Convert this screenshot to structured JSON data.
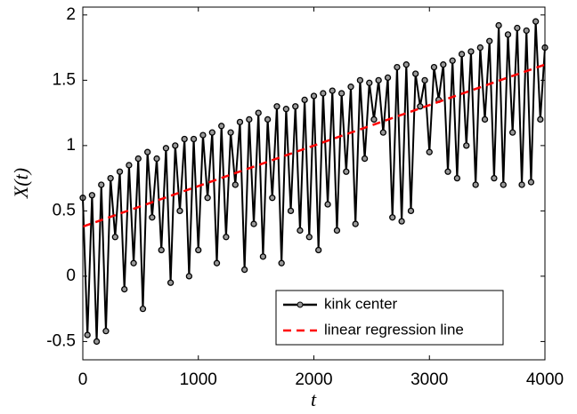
{
  "chart_data": {
    "type": "line",
    "x_label": "t",
    "y_label": "X(t)",
    "xlim": [
      0,
      4000
    ],
    "xticks": [
      0,
      1000,
      2000,
      3000,
      4000
    ],
    "ylim": [
      -0.64,
      2.06
    ],
    "yticks": [
      -0.5,
      0,
      0.5,
      1,
      1.5,
      2
    ],
    "grid": false,
    "legend": "lower right",
    "series": [
      {
        "name": "kink center",
        "color": "#000000",
        "dash": "solid",
        "marker": "circle",
        "x": [
          0,
          40,
          80,
          120,
          160,
          200,
          240,
          280,
          320,
          360,
          400,
          440,
          480,
          520,
          560,
          600,
          640,
          680,
          720,
          760,
          800,
          840,
          880,
          920,
          960,
          1000,
          1040,
          1080,
          1120,
          1160,
          1200,
          1240,
          1280,
          1320,
          1360,
          1400,
          1440,
          1480,
          1520,
          1560,
          1600,
          1640,
          1680,
          1720,
          1760,
          1800,
          1840,
          1880,
          1920,
          1960,
          2000,
          2040,
          2080,
          2120,
          2160,
          2200,
          2240,
          2280,
          2320,
          2360,
          2400,
          2440,
          2480,
          2520,
          2560,
          2600,
          2640,
          2680,
          2720,
          2760,
          2800,
          2840,
          2880,
          2920,
          2960,
          3000,
          3040,
          3080,
          3120,
          3160,
          3200,
          3240,
          3280,
          3320,
          3360,
          3400,
          3440,
          3480,
          3520,
          3560,
          3600,
          3640,
          3680,
          3720,
          3760,
          3800,
          3840,
          3880,
          3920,
          3960,
          4000
        ],
        "values": [
          0.6,
          -0.45,
          0.62,
          -0.5,
          0.7,
          -0.42,
          0.75,
          0.3,
          0.8,
          -0.1,
          0.85,
          0.1,
          0.9,
          -0.25,
          0.95,
          0.45,
          0.9,
          0.2,
          0.98,
          -0.05,
          1.0,
          0.5,
          1.05,
          0.0,
          1.05,
          0.2,
          1.08,
          0.6,
          1.1,
          0.1,
          1.15,
          0.3,
          1.1,
          0.7,
          1.18,
          0.05,
          1.2,
          0.4,
          1.25,
          0.15,
          1.2,
          0.6,
          1.3,
          0.1,
          1.28,
          0.5,
          1.3,
          0.35,
          1.35,
          0.3,
          1.38,
          0.2,
          1.4,
          0.55,
          1.42,
          0.35,
          1.4,
          0.8,
          1.45,
          0.4,
          1.5,
          0.9,
          1.48,
          1.2,
          1.5,
          1.1,
          1.52,
          0.45,
          1.6,
          0.42,
          1.62,
          0.5,
          1.55,
          1.3,
          1.5,
          0.95,
          1.6,
          1.35,
          1.62,
          0.8,
          1.65,
          0.75,
          1.7,
          1.0,
          1.72,
          0.7,
          1.75,
          1.2,
          1.8,
          0.75,
          1.92,
          0.7,
          1.85,
          1.1,
          1.9,
          0.7,
          1.88,
          0.72,
          1.95,
          1.2,
          1.75
        ]
      },
      {
        "name": "linear regression line",
        "color": "#ff0000",
        "dash": "dashed",
        "marker": "none",
        "x": [
          0,
          4000
        ],
        "values": [
          0.38,
          1.62
        ]
      }
    ]
  }
}
